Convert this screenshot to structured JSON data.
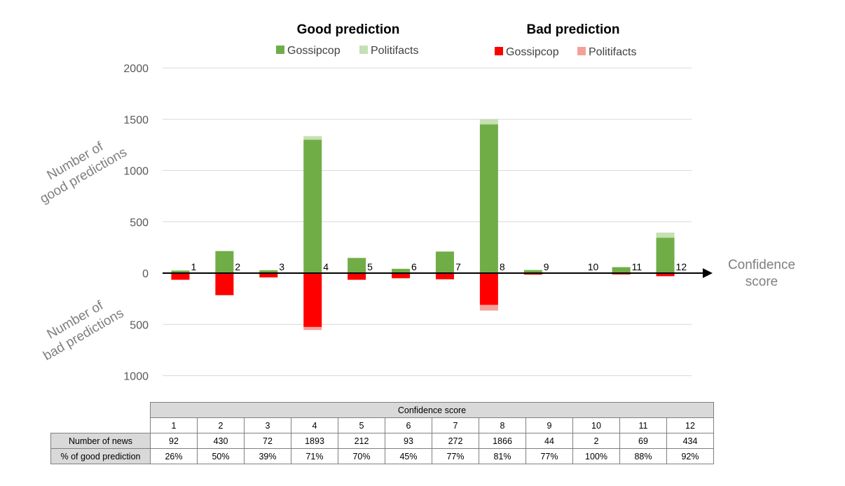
{
  "legend": {
    "good": {
      "title": "Good prediction",
      "items": [
        {
          "label": "Gossipcop",
          "color": "#70ad47"
        },
        {
          "label": "Politifacts",
          "color": "#c5e0b4"
        }
      ]
    },
    "bad": {
      "title": "Bad prediction",
      "items": [
        {
          "label": "Gossipcop",
          "color": "#ff0000"
        },
        {
          "label": "Politifacts",
          "color": "#f4a09a"
        }
      ]
    }
  },
  "chart_data": {
    "type": "bar",
    "ylabel_top": "Number of good predictions",
    "ylabel_bottom": "Number of bad predictions",
    "xlabel": "Confidence score",
    "ylim": [
      -1000,
      2000
    ],
    "yticks": [
      {
        "value": 2000,
        "label": "2000"
      },
      {
        "value": 1500,
        "label": "1500"
      },
      {
        "value": 1000,
        "label": "1000"
      },
      {
        "value": 500,
        "label": "500"
      },
      {
        "value": 0,
        "label": "0"
      },
      {
        "value": -500,
        "label": "500"
      },
      {
        "value": -1000,
        "label": "1000"
      }
    ],
    "grid": true,
    "categories": [
      "1",
      "2",
      "3",
      "4",
      "5",
      "6",
      "7",
      "8",
      "9",
      "10",
      "11",
      "12"
    ],
    "series": [
      {
        "name": "Good Gossipcop",
        "values": [
          25,
          215,
          28,
          1300,
          148,
          42,
          210,
          1450,
          30,
          0,
          58,
          345
        ]
      },
      {
        "name": "Good Politifacts",
        "values": [
          0,
          0,
          0,
          35,
          0,
          0,
          0,
          50,
          0,
          0,
          0,
          50
        ]
      },
      {
        "name": "Bad Gossipcop",
        "values": [
          65,
          215,
          42,
          525,
          65,
          50,
          60,
          310,
          15,
          0,
          13,
          30
        ]
      },
      {
        "name": "Bad Politifacts",
        "values": [
          0,
          0,
          0,
          30,
          0,
          0,
          0,
          55,
          0,
          0,
          0,
          0
        ]
      }
    ]
  },
  "table": {
    "header": "Confidence score",
    "scores": [
      "1",
      "2",
      "3",
      "4",
      "5",
      "6",
      "7",
      "8",
      "9",
      "10",
      "11",
      "12"
    ],
    "rows": [
      {
        "label": "Number of news",
        "values": [
          "92",
          "430",
          "72",
          "1893",
          "212",
          "93",
          "272",
          "1866",
          "44",
          "2",
          "69",
          "434"
        ]
      },
      {
        "label": "% of good prediction",
        "values": [
          "26%",
          "50%",
          "39%",
          "71%",
          "70%",
          "45%",
          "77%",
          "81%",
          "77%",
          "100%",
          "88%",
          "92%"
        ]
      }
    ]
  }
}
